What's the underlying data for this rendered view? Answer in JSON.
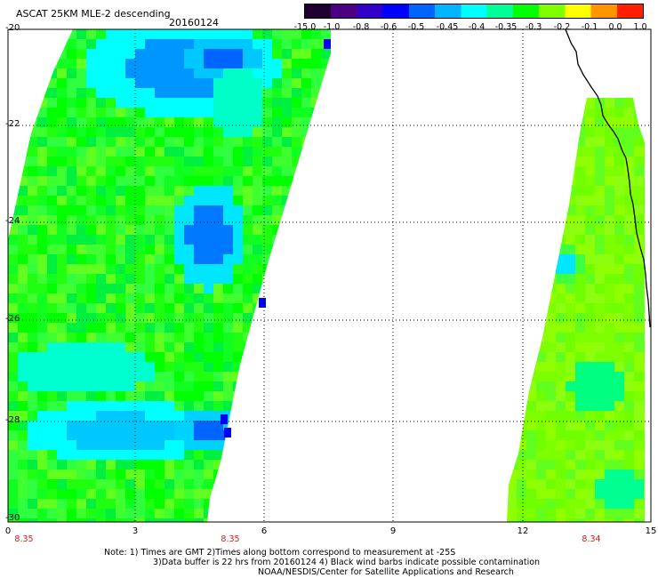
{
  "title": "ASCAT 25KM MLE-2 descending",
  "date": "20160124",
  "colorbar": {
    "labels": [
      "-15.0",
      "-1.0",
      "-0.8",
      "-0.6",
      "-0.5",
      "-0.45",
      "-0.4",
      "-0.35",
      "-0.3",
      "-0.2",
      "-0.1",
      "0.0",
      "1.0"
    ],
    "colors": [
      "#200030",
      "#4b0082",
      "#3000c8",
      "#0000ff",
      "#0064ff",
      "#00b4ff",
      "#00ffff",
      "#00ff96",
      "#00ff00",
      "#80ff00",
      "#ffff00",
      "#ff9600",
      "#ff2000"
    ]
  },
  "axes": {
    "y_ticks": [
      "-20",
      "-22",
      "-24",
      "-26",
      "-28",
      "-30"
    ],
    "x_ticks": [
      "0",
      "3",
      "6",
      "9",
      "12",
      "15"
    ],
    "time_labels": [
      "8.35",
      "8.35",
      "8.34"
    ]
  },
  "notes": {
    "line1": "Note: 1) Times are GMT 2)Times along bottom correspond to measurement at -25S",
    "line2": "3)Data buffer is 22 hrs from 20160124 4) Black wind barbs indicate possible contamination",
    "line3": "NOAA/NESDIS/Center for Satellite Applications and Research"
  }
}
